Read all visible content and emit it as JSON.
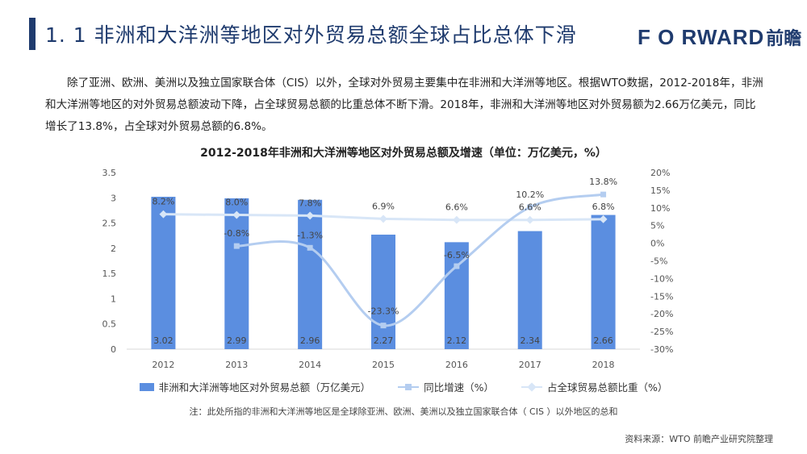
{
  "header": {
    "title": "1. 1  非洲和大洋洲等地区对外贸易总额全球占比总体下滑",
    "logo_text": "F O RWARD",
    "logo_cn": "前瞻"
  },
  "intro": "除了亚洲、欧洲、美洲以及独立国家联合体（CIS）以外，全球对外贸易主要集中在非洲和大洋洲等地区。根据WTO数据，2012-2018年，非洲和大洋洲等地区的对外贸易总额波动下降，占全球贸易总额的比重总体不断下滑。2018年，非洲和大洋洲等地区对外贸易额为2.66万亿美元，同比增长了13.8%，占全球对外贸易总额的6.8%。",
  "chart_data": {
    "type": "bar",
    "title": "2012-2018年非洲和大洋洲等地区对外贸易总额及增速（单位：万亿美元，%）",
    "categories": [
      "2012",
      "2013",
      "2014",
      "2015",
      "2016",
      "2017",
      "2018"
    ],
    "series": [
      {
        "name": "非洲和大洋洲等地区对外贸易总额（万亿美元）",
        "type": "bar",
        "axis": "left",
        "values": [
          3.02,
          2.99,
          2.96,
          2.27,
          2.12,
          2.34,
          2.66
        ],
        "labels": [
          "3.02",
          "2.99",
          "2.96",
          "2.27",
          "2.12",
          "2.34",
          "2.66"
        ]
      },
      {
        "name": "同比增速（%）",
        "type": "line",
        "axis": "right",
        "values": [
          null,
          -0.8,
          -1.3,
          -23.3,
          -6.5,
          10.2,
          13.8
        ],
        "labels": [
          "",
          "-0.8%",
          "-1.3%",
          "-23.3%",
          "-6.5%",
          "10.2%",
          "13.8%"
        ]
      },
      {
        "name": "占全球贸易总额比重（%）",
        "type": "line",
        "axis": "right",
        "values": [
          8.2,
          8.0,
          7.8,
          6.9,
          6.6,
          6.6,
          6.8
        ],
        "labels": [
          "8.2%",
          "8.0%",
          "7.8%",
          "6.9%",
          "6.6%",
          "6.6%",
          "6.8%"
        ]
      }
    ],
    "y_left": {
      "min": 0,
      "max": 3.5,
      "ticks": [
        "0",
        "0.5",
        "1",
        "1.5",
        "2",
        "2.5",
        "3",
        "3.5"
      ]
    },
    "y_right": {
      "min": -30,
      "max": 20,
      "ticks": [
        "-30%",
        "-25%",
        "-20%",
        "-15%",
        "-10%",
        "-5%",
        "0%",
        "5%",
        "10%",
        "15%",
        "20%"
      ]
    },
    "legend": [
      "非洲和大洋洲等地区对外贸易总额（万亿美元）",
      "同比增速（%）",
      "占全球贸易总额比重（%）"
    ],
    "colors": {
      "bar": "#5b8ee0",
      "growth": "#b4cdf0",
      "share": "#d8e6f7"
    }
  },
  "note": "注：此处所指的非洲和大洋洲等地区是全球除亚洲、欧洲、美洲以及独立国家联合体（ CIS ）以外地区的总和",
  "source": "资料来源：WTO   前瞻产业研究院整理"
}
